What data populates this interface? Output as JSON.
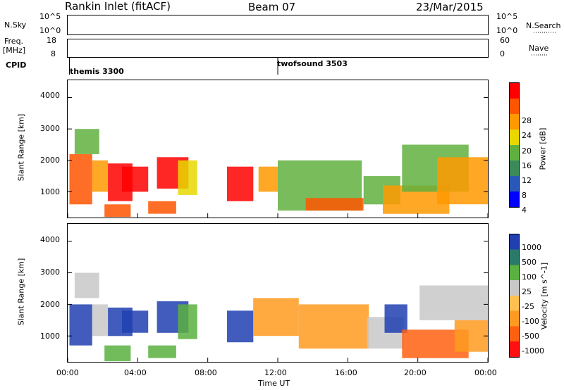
{
  "header": {
    "station": "Rankin Inlet (fitACF)",
    "beam": "Beam 07",
    "date": "23/Mar/2015"
  },
  "top_panels": {
    "nsky_label": "N.Sky",
    "nsky_ticks": [
      "10^5",
      "10^0"
    ],
    "nsearch_label": "N.Search",
    "nsearch_ticks": [
      "10^5",
      "10^0"
    ],
    "freq_label_1": "Freq.",
    "freq_label_2": "[MHz]",
    "freq_ticks": [
      "18",
      "8"
    ],
    "nave_label": "Nave",
    "nave_ticks": [
      "60",
      "0"
    ],
    "cpid_label": "CPID",
    "cpid_modes": [
      {
        "name": "themis 3300",
        "start_hour": 0.1
      },
      {
        "name": "twofsound 3503",
        "start_hour": 12.0
      }
    ]
  },
  "time_axis": {
    "label": "Time UT",
    "ticks": [
      "00:00",
      "04:00",
      "08:00",
      "12:00",
      "16:00",
      "20:00",
      "00:00"
    ],
    "range_hours": [
      0,
      24
    ]
  },
  "chart_data": [
    {
      "type": "heatmap",
      "name": "power",
      "ylabel": "Slant Range [km]",
      "yticks": [
        "1000",
        "2000",
        "3000",
        "4000"
      ],
      "ylim": [
        180,
        4550
      ],
      "colorbar_label": "Power [dB]",
      "colorbar_ticks": [
        "28",
        "24",
        "20",
        "16",
        "12",
        "8",
        "4"
      ],
      "colorbar_colors": [
        "#0000ff",
        "#2a58b8",
        "#3a8a5a",
        "#60b040",
        "#e8d800",
        "#ff9900",
        "#ff5500",
        "#ff0000"
      ],
      "echo_regions": [
        {
          "t": [
            0.1,
            1.4
          ],
          "r": [
            600,
            2200
          ],
          "level": 6
        },
        {
          "t": [
            0.4,
            1.8
          ],
          "r": [
            2200,
            3000
          ],
          "level": 3
        },
        {
          "t": [
            1.4,
            2.3
          ],
          "r": [
            1000,
            2000
          ],
          "level": 5
        },
        {
          "t": [
            2.3,
            3.7
          ],
          "r": [
            700,
            1900
          ],
          "level": 7
        },
        {
          "t": [
            2.1,
            3.6
          ],
          "r": [
            200,
            600
          ],
          "level": 6
        },
        {
          "t": [
            3.1,
            4.6
          ],
          "r": [
            1000,
            1800
          ],
          "level": 7
        },
        {
          "t": [
            4.6,
            6.2
          ],
          "r": [
            300,
            700
          ],
          "level": 6
        },
        {
          "t": [
            5.1,
            6.9
          ],
          "r": [
            1100,
            2100
          ],
          "level": 7
        },
        {
          "t": [
            6.3,
            7.4
          ],
          "r": [
            900,
            2000
          ],
          "level": 4
        },
        {
          "t": [
            9.1,
            10.6
          ],
          "r": [
            700,
            1800
          ],
          "level": 7
        },
        {
          "t": [
            10.9,
            12.0
          ],
          "r": [
            1000,
            1800
          ],
          "level": 5
        },
        {
          "t": [
            12.0,
            16.8
          ],
          "r": [
            400,
            2000
          ],
          "level": 3
        },
        {
          "t": [
            13.6,
            16.9
          ],
          "r": [
            400,
            800
          ],
          "level": 6
        },
        {
          "t": [
            16.9,
            19.0
          ],
          "r": [
            600,
            1500
          ],
          "level": 3
        },
        {
          "t": [
            18.0,
            21.8
          ],
          "r": [
            300,
            1200
          ],
          "level": 5
        },
        {
          "t": [
            19.1,
            22.9
          ],
          "r": [
            1000,
            2500
          ],
          "level": 3
        },
        {
          "t": [
            21.1,
            24.0
          ],
          "r": [
            600,
            2100
          ],
          "level": 5
        }
      ]
    },
    {
      "type": "heatmap",
      "name": "velocity",
      "ylabel": "Slant Range [km]",
      "yticks": [
        "1000",
        "2000",
        "3000",
        "4000"
      ],
      "ylim": [
        180,
        4550
      ],
      "colorbar_label": "Velocity [m s^-1]",
      "colorbar_ticks": [
        "1000",
        "500",
        "100",
        "25",
        "-25",
        "-100",
        "-500",
        "-1000"
      ],
      "colorbar_colors": [
        "#2040b0",
        "#2a7a6a",
        "#5ab040",
        "#c8c8c8",
        "#ffc050",
        "#ff9a20",
        "#ff6010",
        "#ff1010"
      ],
      "echo_regions": [
        {
          "t": [
            0.1,
            1.4
          ],
          "r": [
            700,
            2000
          ],
          "level": 0
        },
        {
          "t": [
            0.4,
            1.8
          ],
          "r": [
            2200,
            3000
          ],
          "level": 3
        },
        {
          "t": [
            1.4,
            2.3
          ],
          "r": [
            1000,
            2000
          ],
          "level": 3
        },
        {
          "t": [
            2.3,
            3.7
          ],
          "r": [
            1000,
            1900
          ],
          "level": 0
        },
        {
          "t": [
            2.1,
            3.6
          ],
          "r": [
            200,
            700
          ],
          "level": 2
        },
        {
          "t": [
            3.1,
            4.6
          ],
          "r": [
            1100,
            1800
          ],
          "level": 0
        },
        {
          "t": [
            4.6,
            6.2
          ],
          "r": [
            300,
            700
          ],
          "level": 2
        },
        {
          "t": [
            5.1,
            6.9
          ],
          "r": [
            1100,
            2100
          ],
          "level": 0
        },
        {
          "t": [
            6.3,
            7.4
          ],
          "r": [
            900,
            2000
          ],
          "level": 2
        },
        {
          "t": [
            9.1,
            10.6
          ],
          "r": [
            800,
            1800
          ],
          "level": 0
        },
        {
          "t": [
            10.6,
            13.2
          ],
          "r": [
            1000,
            2200
          ],
          "level": 5
        },
        {
          "t": [
            13.2,
            17.2
          ],
          "r": [
            600,
            2000
          ],
          "level": 5
        },
        {
          "t": [
            17.1,
            19.2
          ],
          "r": [
            600,
            1600
          ],
          "level": 3
        },
        {
          "t": [
            18.1,
            19.4
          ],
          "r": [
            1100,
            2000
          ],
          "level": 0
        },
        {
          "t": [
            19.1,
            22.9
          ],
          "r": [
            300,
            1200
          ],
          "level": 6
        },
        {
          "t": [
            20.1,
            24.0
          ],
          "r": [
            1500,
            2600
          ],
          "level": 3
        },
        {
          "t": [
            22.1,
            24.0
          ],
          "r": [
            500,
            1500
          ],
          "level": 5
        }
      ]
    }
  ]
}
